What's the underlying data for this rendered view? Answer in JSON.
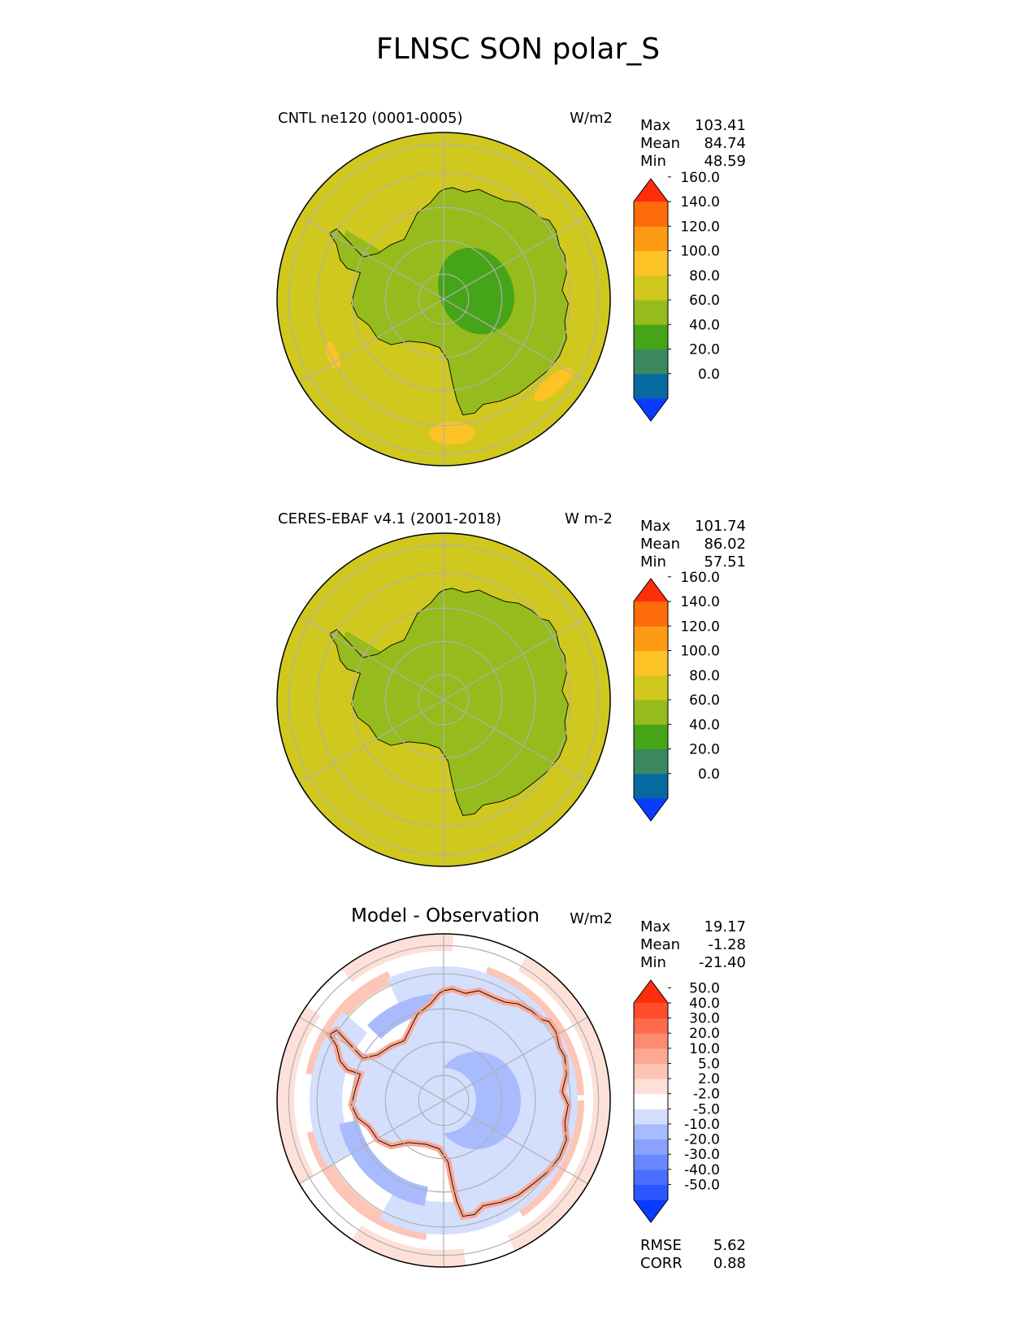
{
  "title": "FLNSC SON polar_S",
  "panels": [
    {
      "id": "test",
      "title": "CNTL ne120 (0001-0005)",
      "units": "W/m2",
      "stats": [
        {
          "label": "Max",
          "value": "103.41"
        },
        {
          "label": "Mean",
          "value": "84.74"
        },
        {
          "label": "Min",
          "value": "48.59"
        }
      ]
    },
    {
      "id": "ref",
      "title": "CERES-EBAF v4.1 (2001-2018)",
      "units": "W m-2",
      "stats": [
        {
          "label": "Max",
          "value": "101.74"
        },
        {
          "label": "Mean",
          "value": "86.02"
        },
        {
          "label": "Min",
          "value": "57.51"
        }
      ]
    },
    {
      "id": "diff",
      "title": "Model - Observation",
      "units": "W/m2",
      "stats": [
        {
          "label": "Max",
          "value": "19.17"
        },
        {
          "label": "Mean",
          "value": "-1.28"
        },
        {
          "label": "Min",
          "value": "-21.40"
        }
      ],
      "extra_stats": [
        {
          "label": "RMSE",
          "value": "5.62"
        },
        {
          "label": "CORR",
          "value": "0.88"
        }
      ]
    }
  ],
  "chart_data": [
    {
      "type": "heatmap",
      "projection": "south-polar-stereographic",
      "title": "CNTL ne120 (0001-0005)",
      "units": "W/m2",
      "colorbar": {
        "levels": [
          0,
          20,
          40,
          60,
          80,
          100,
          120,
          140,
          160
        ],
        "tick_labels": [
          "0.0",
          "20.0",
          "40.0",
          "60.0",
          "80.0",
          "100.0",
          "120.0",
          "140.0",
          "160.0"
        ],
        "colors": [
          "#0a3cff",
          "#066aa0",
          "#3a8760",
          "#46a418",
          "#96bb1c",
          "#d0c81e",
          "#fdc224",
          "#fd9b14",
          "#fd6b0a",
          "#fe2e0a"
        ],
        "extend": "both"
      },
      "max": 103.41,
      "mean": 84.74,
      "min": 48.59
    },
    {
      "type": "heatmap",
      "projection": "south-polar-stereographic",
      "title": "CERES-EBAF v4.1 (2001-2018)",
      "units": "W m-2",
      "colorbar": {
        "levels": [
          0,
          20,
          40,
          60,
          80,
          100,
          120,
          140,
          160
        ],
        "tick_labels": [
          "0.0",
          "20.0",
          "40.0",
          "60.0",
          "80.0",
          "100.0",
          "120.0",
          "140.0",
          "160.0"
        ],
        "colors": [
          "#0a3cff",
          "#066aa0",
          "#3a8760",
          "#46a418",
          "#96bb1c",
          "#d0c81e",
          "#fdc224",
          "#fd9b14",
          "#fd6b0a",
          "#fe2e0a"
        ],
        "extend": "both"
      },
      "max": 101.74,
      "mean": 86.02,
      "min": 57.51
    },
    {
      "type": "heatmap",
      "projection": "south-polar-stereographic",
      "title": "Model - Observation",
      "units": "W/m2",
      "colorbar": {
        "levels": [
          -50,
          -40,
          -30,
          -20,
          -10,
          -5,
          -2,
          2,
          5,
          10,
          20,
          30,
          40,
          50
        ],
        "tick_labels": [
          "-50.0",
          "-40.0",
          "-30.0",
          "-20.0",
          "-10.0",
          "-5.0",
          "-2.0",
          "2.0",
          "5.0",
          "10.0",
          "20.0",
          "30.0",
          "40.0",
          "50.0"
        ],
        "colors": [
          "#0a3cff",
          "#2b55fe",
          "#4a6ffe",
          "#6a88fe",
          "#8aa2fe",
          "#a8bbfe",
          "#d4defd",
          "#ffffff",
          "#fde0d8",
          "#fcc5b5",
          "#fca892",
          "#fc8b6f",
          "#fd6c4c",
          "#fd4d2a",
          "#fe2e0a"
        ],
        "extend": "both"
      },
      "max": 19.17,
      "mean": -1.28,
      "min": -21.4,
      "rmse": 5.62,
      "corr": 0.88
    }
  ]
}
